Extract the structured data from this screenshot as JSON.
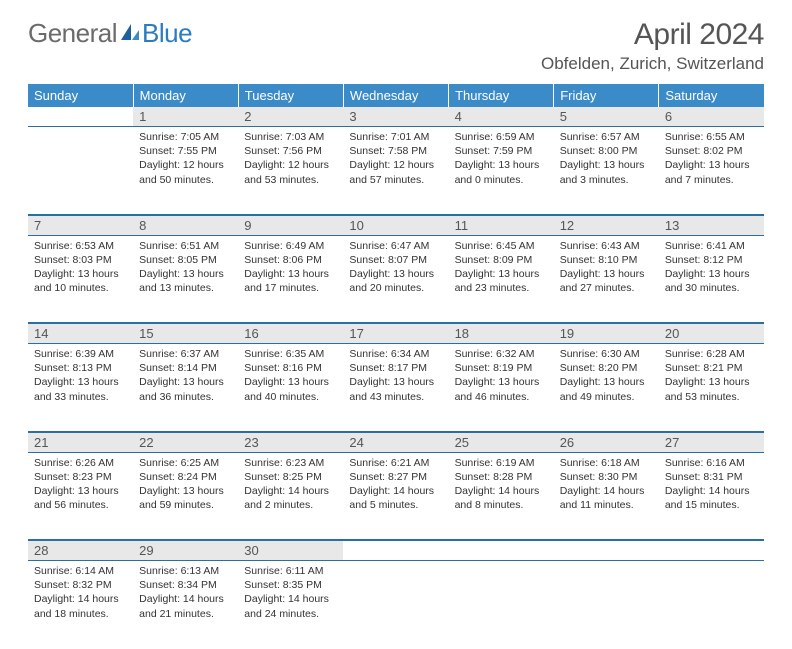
{
  "logo": {
    "text1": "General",
    "text2": "Blue"
  },
  "title": "April 2024",
  "location": "Obfelden, Zurich, Switzerland",
  "colors": {
    "header_bg": "#3b8bc8",
    "border": "#2a6fa3",
    "daynum_bg": "#e8e8e8",
    "text": "#333333"
  },
  "weekdays": [
    "Sunday",
    "Monday",
    "Tuesday",
    "Wednesday",
    "Thursday",
    "Friday",
    "Saturday"
  ],
  "weeks": [
    [
      {
        "num": "",
        "lines": []
      },
      {
        "num": "1",
        "lines": [
          "Sunrise: 7:05 AM",
          "Sunset: 7:55 PM",
          "Daylight: 12 hours",
          "and 50 minutes."
        ]
      },
      {
        "num": "2",
        "lines": [
          "Sunrise: 7:03 AM",
          "Sunset: 7:56 PM",
          "Daylight: 12 hours",
          "and 53 minutes."
        ]
      },
      {
        "num": "3",
        "lines": [
          "Sunrise: 7:01 AM",
          "Sunset: 7:58 PM",
          "Daylight: 12 hours",
          "and 57 minutes."
        ]
      },
      {
        "num": "4",
        "lines": [
          "Sunrise: 6:59 AM",
          "Sunset: 7:59 PM",
          "Daylight: 13 hours",
          "and 0 minutes."
        ]
      },
      {
        "num": "5",
        "lines": [
          "Sunrise: 6:57 AM",
          "Sunset: 8:00 PM",
          "Daylight: 13 hours",
          "and 3 minutes."
        ]
      },
      {
        "num": "6",
        "lines": [
          "Sunrise: 6:55 AM",
          "Sunset: 8:02 PM",
          "Daylight: 13 hours",
          "and 7 minutes."
        ]
      }
    ],
    [
      {
        "num": "7",
        "lines": [
          "Sunrise: 6:53 AM",
          "Sunset: 8:03 PM",
          "Daylight: 13 hours",
          "and 10 minutes."
        ]
      },
      {
        "num": "8",
        "lines": [
          "Sunrise: 6:51 AM",
          "Sunset: 8:05 PM",
          "Daylight: 13 hours",
          "and 13 minutes."
        ]
      },
      {
        "num": "9",
        "lines": [
          "Sunrise: 6:49 AM",
          "Sunset: 8:06 PM",
          "Daylight: 13 hours",
          "and 17 minutes."
        ]
      },
      {
        "num": "10",
        "lines": [
          "Sunrise: 6:47 AM",
          "Sunset: 8:07 PM",
          "Daylight: 13 hours",
          "and 20 minutes."
        ]
      },
      {
        "num": "11",
        "lines": [
          "Sunrise: 6:45 AM",
          "Sunset: 8:09 PM",
          "Daylight: 13 hours",
          "and 23 minutes."
        ]
      },
      {
        "num": "12",
        "lines": [
          "Sunrise: 6:43 AM",
          "Sunset: 8:10 PM",
          "Daylight: 13 hours",
          "and 27 minutes."
        ]
      },
      {
        "num": "13",
        "lines": [
          "Sunrise: 6:41 AM",
          "Sunset: 8:12 PM",
          "Daylight: 13 hours",
          "and 30 minutes."
        ]
      }
    ],
    [
      {
        "num": "14",
        "lines": [
          "Sunrise: 6:39 AM",
          "Sunset: 8:13 PM",
          "Daylight: 13 hours",
          "and 33 minutes."
        ]
      },
      {
        "num": "15",
        "lines": [
          "Sunrise: 6:37 AM",
          "Sunset: 8:14 PM",
          "Daylight: 13 hours",
          "and 36 minutes."
        ]
      },
      {
        "num": "16",
        "lines": [
          "Sunrise: 6:35 AM",
          "Sunset: 8:16 PM",
          "Daylight: 13 hours",
          "and 40 minutes."
        ]
      },
      {
        "num": "17",
        "lines": [
          "Sunrise: 6:34 AM",
          "Sunset: 8:17 PM",
          "Daylight: 13 hours",
          "and 43 minutes."
        ]
      },
      {
        "num": "18",
        "lines": [
          "Sunrise: 6:32 AM",
          "Sunset: 8:19 PM",
          "Daylight: 13 hours",
          "and 46 minutes."
        ]
      },
      {
        "num": "19",
        "lines": [
          "Sunrise: 6:30 AM",
          "Sunset: 8:20 PM",
          "Daylight: 13 hours",
          "and 49 minutes."
        ]
      },
      {
        "num": "20",
        "lines": [
          "Sunrise: 6:28 AM",
          "Sunset: 8:21 PM",
          "Daylight: 13 hours",
          "and 53 minutes."
        ]
      }
    ],
    [
      {
        "num": "21",
        "lines": [
          "Sunrise: 6:26 AM",
          "Sunset: 8:23 PM",
          "Daylight: 13 hours",
          "and 56 minutes."
        ]
      },
      {
        "num": "22",
        "lines": [
          "Sunrise: 6:25 AM",
          "Sunset: 8:24 PM",
          "Daylight: 13 hours",
          "and 59 minutes."
        ]
      },
      {
        "num": "23",
        "lines": [
          "Sunrise: 6:23 AM",
          "Sunset: 8:25 PM",
          "Daylight: 14 hours",
          "and 2 minutes."
        ]
      },
      {
        "num": "24",
        "lines": [
          "Sunrise: 6:21 AM",
          "Sunset: 8:27 PM",
          "Daylight: 14 hours",
          "and 5 minutes."
        ]
      },
      {
        "num": "25",
        "lines": [
          "Sunrise: 6:19 AM",
          "Sunset: 8:28 PM",
          "Daylight: 14 hours",
          "and 8 minutes."
        ]
      },
      {
        "num": "26",
        "lines": [
          "Sunrise: 6:18 AM",
          "Sunset: 8:30 PM",
          "Daylight: 14 hours",
          "and 11 minutes."
        ]
      },
      {
        "num": "27",
        "lines": [
          "Sunrise: 6:16 AM",
          "Sunset: 8:31 PM",
          "Daylight: 14 hours",
          "and 15 minutes."
        ]
      }
    ],
    [
      {
        "num": "28",
        "lines": [
          "Sunrise: 6:14 AM",
          "Sunset: 8:32 PM",
          "Daylight: 14 hours",
          "and 18 minutes."
        ]
      },
      {
        "num": "29",
        "lines": [
          "Sunrise: 6:13 AM",
          "Sunset: 8:34 PM",
          "Daylight: 14 hours",
          "and 21 minutes."
        ]
      },
      {
        "num": "30",
        "lines": [
          "Sunrise: 6:11 AM",
          "Sunset: 8:35 PM",
          "Daylight: 14 hours",
          "and 24 minutes."
        ]
      },
      {
        "num": "",
        "lines": []
      },
      {
        "num": "",
        "lines": []
      },
      {
        "num": "",
        "lines": []
      },
      {
        "num": "",
        "lines": []
      }
    ]
  ]
}
